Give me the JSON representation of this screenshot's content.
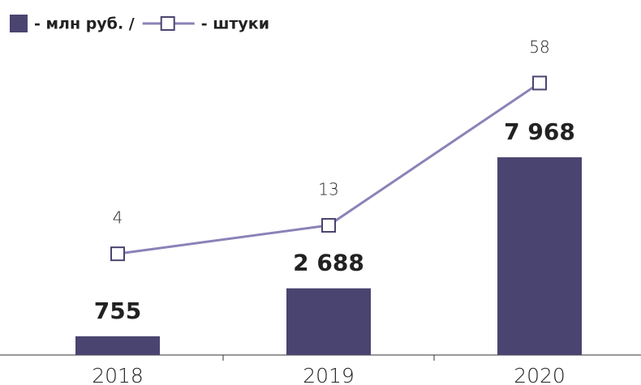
{
  "chart_data": {
    "type": "bar_line",
    "categories": [
      "2018",
      "2019",
      "2020"
    ],
    "series": [
      {
        "name": "- млн руб. /",
        "type": "bar",
        "color": "#4a4470",
        "values": [
          755,
          2688,
          7968
        ],
        "value_labels": [
          "755",
          "2 688",
          "7 968"
        ]
      },
      {
        "name": "- штуки",
        "type": "line",
        "axis": "y2",
        "color": "#8b82b8",
        "values": [
          4,
          13,
          58
        ]
      }
    ],
    "ylim": [
      0,
      13000
    ],
    "y2lim": [
      -28,
      74
    ]
  }
}
